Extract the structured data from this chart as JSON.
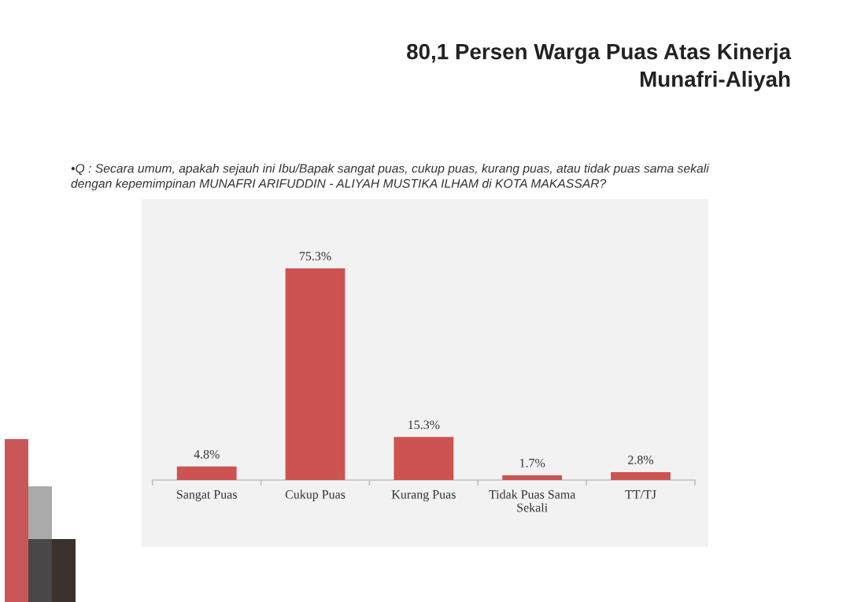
{
  "chart_data": {
    "type": "bar",
    "title": "80,1 Persen Warga Puas Atas Kinerja\nMunafri-Aliyah",
    "subtitle": "•Q : Secara umum, apakah sejauh ini Ibu/Bapak sangat puas, cukup puas, kurang puas, atau tidak puas sama sekali\ndengan kepemimpinan MUNAFRI ARIFUDDIN - ALIYAH MUSTIKA ILHAM di KOTA MAKASSAR?",
    "categories": [
      "Sangat Puas",
      "Cukup Puas",
      "Kurang Puas",
      "Tidak Puas Sama Sekali",
      "TT/TJ"
    ],
    "values": [
      4.8,
      75.3,
      15.3,
      1.7,
      2.8
    ],
    "value_labels": [
      "4.8%",
      "75.3%",
      "15.3%",
      "1.7%",
      "2.8%"
    ],
    "color": "#cd5352"
  }
}
